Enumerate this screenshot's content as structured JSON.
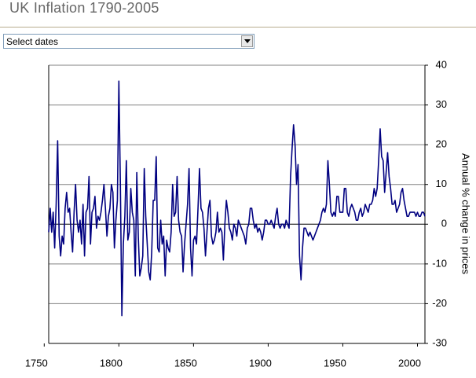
{
  "header": {
    "title": "UK Inflation 1790-2005"
  },
  "controls": {
    "select_label": "Select dates"
  },
  "chart_data": {
    "type": "line",
    "y_label": "Annual % change in prices",
    "color": "#000080",
    "grid": true,
    "y_axis_side": "right",
    "xlim": [
      1753,
      2005
    ],
    "xticks": [
      1750,
      1800,
      1850,
      1900,
      1950,
      2000
    ],
    "ylim": [
      -30,
      40
    ],
    "yticks": [
      -30,
      -20,
      -10,
      0,
      10,
      20,
      30,
      40
    ],
    "x": [
      1753,
      1754,
      1755,
      1756,
      1757,
      1758,
      1759,
      1760,
      1761,
      1762,
      1763,
      1764,
      1765,
      1766,
      1767,
      1768,
      1769,
      1770,
      1771,
      1772,
      1773,
      1774,
      1775,
      1776,
      1777,
      1778,
      1779,
      1780,
      1781,
      1782,
      1783,
      1784,
      1785,
      1786,
      1787,
      1788,
      1789,
      1790,
      1791,
      1792,
      1793,
      1794,
      1795,
      1796,
      1797,
      1798,
      1799,
      1800,
      1801,
      1802,
      1803,
      1804,
      1805,
      1806,
      1807,
      1808,
      1809,
      1810,
      1811,
      1812,
      1813,
      1814,
      1815,
      1816,
      1817,
      1818,
      1819,
      1820,
      1821,
      1822,
      1823,
      1824,
      1825,
      1826,
      1827,
      1828,
      1829,
      1830,
      1831,
      1832,
      1833,
      1834,
      1835,
      1836,
      1837,
      1838,
      1839,
      1840,
      1841,
      1842,
      1843,
      1844,
      1845,
      1846,
      1847,
      1848,
      1849,
      1850,
      1851,
      1852,
      1853,
      1854,
      1855,
      1856,
      1857,
      1858,
      1859,
      1860,
      1861,
      1862,
      1863,
      1864,
      1865,
      1866,
      1867,
      1868,
      1869,
      1870,
      1871,
      1872,
      1873,
      1874,
      1875,
      1876,
      1877,
      1878,
      1879,
      1880,
      1881,
      1882,
      1883,
      1884,
      1885,
      1886,
      1887,
      1888,
      1889,
      1890,
      1891,
      1892,
      1893,
      1894,
      1895,
      1896,
      1897,
      1898,
      1899,
      1900,
      1901,
      1902,
      1903,
      1904,
      1905,
      1906,
      1907,
      1908,
      1909,
      1910,
      1911,
      1912,
      1913,
      1914,
      1915,
      1916,
      1917,
      1918,
      1919,
      1920,
      1921,
      1922,
      1923,
      1924,
      1925,
      1926,
      1927,
      1928,
      1929,
      1930,
      1931,
      1932,
      1933,
      1934,
      1935,
      1936,
      1937,
      1938,
      1939,
      1940,
      1941,
      1942,
      1943,
      1944,
      1945,
      1946,
      1947,
      1948,
      1949,
      1950,
      1951,
      1952,
      1953,
      1954,
      1955,
      1956,
      1957,
      1958,
      1959,
      1960,
      1961,
      1962,
      1963,
      1964,
      1965,
      1966,
      1967,
      1968,
      1969,
      1970,
      1971,
      1972,
      1973,
      1974,
      1975,
      1976,
      1977,
      1978,
      1979,
      1980,
      1981,
      1982,
      1983,
      1984,
      1985,
      1986,
      1987,
      1988,
      1989,
      1990,
      1991,
      1992,
      1993,
      1994,
      1995,
      1996,
      1997,
      1998,
      1999,
      2000,
      2001,
      2002,
      2003,
      2004,
      2005
    ],
    "values": [
      -2,
      4,
      -2,
      3,
      -6,
      5,
      21,
      -3,
      -8,
      -3,
      -5,
      4,
      8,
      3,
      4,
      -2,
      -7,
      3,
      10,
      1,
      -2,
      1,
      -5,
      5,
      -8,
      3,
      4,
      12,
      -5,
      3,
      4,
      7,
      -1,
      2,
      1,
      3,
      6,
      10,
      4,
      -3,
      2,
      4,
      10,
      8,
      -6,
      1,
      6,
      36,
      10,
      -23,
      -5,
      2,
      16,
      -4,
      -2,
      9,
      3,
      1,
      -13,
      13,
      -3,
      -13,
      -11,
      -8,
      14,
      2,
      -5,
      -12,
      -14,
      -7,
      6,
      6,
      17,
      -6,
      -7,
      1,
      -5,
      -3,
      -13,
      -4,
      -6,
      -7,
      -2,
      10,
      2,
      3,
      12,
      1,
      -2,
      -3,
      -12,
      -5,
      0,
      5,
      14,
      -6,
      -13,
      -4,
      -3,
      -5,
      4,
      14,
      4,
      3,
      -1,
      -8,
      -2,
      4,
      6,
      -3,
      -5,
      -4,
      -2,
      3,
      -2,
      -1,
      -2,
      -9,
      0,
      6,
      3,
      -1,
      -2,
      -4,
      0,
      -1,
      -3,
      1,
      0,
      -1,
      -2,
      -3,
      -5,
      -1,
      0,
      4,
      4,
      1,
      -1,
      0,
      -2,
      -1,
      -2,
      -4,
      -2,
      1,
      1,
      0,
      0,
      1,
      0,
      -1,
      2,
      4,
      0,
      -1,
      0,
      0,
      -1,
      1,
      0,
      -1,
      12,
      19,
      25,
      20,
      10,
      15,
      -8,
      -14,
      -6,
      -1,
      -1,
      -2,
      -3,
      -2,
      -3,
      -4,
      -3,
      -2,
      -1,
      0,
      1,
      3,
      4,
      3,
      5,
      16,
      10,
      3,
      2,
      3,
      2,
      7,
      7,
      3,
      3,
      3,
      9,
      9,
      3,
      2,
      4,
      5,
      4,
      3,
      1,
      1,
      3,
      4,
      2,
      3,
      5,
      4,
      3,
      5,
      5,
      6,
      9,
      7,
      9,
      16,
      24,
      17,
      16,
      8,
      13,
      18,
      12,
      9,
      5,
      5,
      6,
      3,
      4,
      5,
      8,
      9,
      6,
      4,
      2,
      2,
      3,
      3,
      3,
      3,
      2,
      3,
      2,
      2,
      3,
      3,
      2
    ]
  }
}
